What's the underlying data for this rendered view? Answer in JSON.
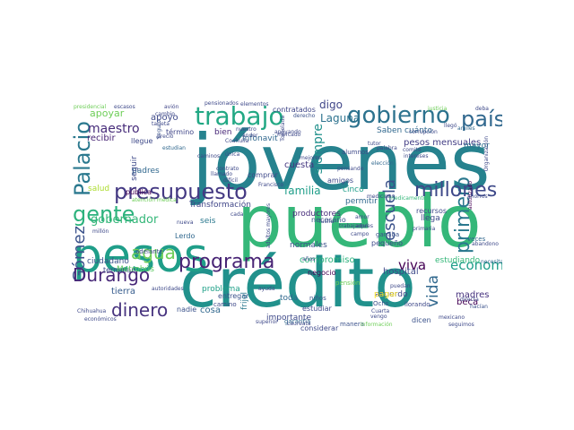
{
  "words": [
    {
      "id": "jovenes",
      "text": "jóvenes",
      "color": "#26828e"
    },
    {
      "id": "pueblo",
      "text": "pueblo",
      "color": "#35b779"
    },
    {
      "id": "credito",
      "text": "crédito",
      "color": "#21918c"
    },
    {
      "id": "pesos",
      "text": "pesos",
      "color": "#1f9e89"
    },
    {
      "id": "presupuesto",
      "text": "presupuesto",
      "color": "#443983"
    },
    {
      "id": "trabajo",
      "text": "trabajo",
      "color": "#22a884"
    },
    {
      "id": "gobierno",
      "text": "gobierno",
      "color": "#2c728e"
    },
    {
      "id": "pais",
      "text": "país",
      "color": "#31688e"
    },
    {
      "id": "palacio",
      "text": "Palacio",
      "color": "#2a788e"
    },
    {
      "id": "gente",
      "text": "gente",
      "color": "#2db27d"
    },
    {
      "id": "agua",
      "text": "agua",
      "color": "#6ece58"
    },
    {
      "id": "gomez",
      "text": "Gómez",
      "color": "#3b528b"
    },
    {
      "id": "durango",
      "text": "Durango",
      "color": "#482878"
    },
    {
      "id": "dinero",
      "text": "dinero",
      "color": "#46327e"
    },
    {
      "id": "programa",
      "text": "programa",
      "color": "#482475"
    },
    {
      "id": "primero",
      "text": "primero",
      "color": "#2a788e"
    },
    {
      "id": "millones",
      "text": "millones",
      "color": "#3e4989"
    },
    {
      "id": "escuela",
      "text": "escuela",
      "color": "#3b528b"
    },
    {
      "id": "vida",
      "text": "vida",
      "color": "#31688e"
    },
    {
      "id": "viva",
      "text": "viva",
      "color": "#440154"
    },
    {
      "id": "economia",
      "text": "economía",
      "color": "#1f9e89"
    },
    {
      "id": "familia",
      "text": "familia",
      "color": "#1f9e89"
    },
    {
      "id": "digo",
      "text": "digo",
      "color": "#404688"
    },
    {
      "id": "laguna",
      "text": "Laguna",
      "color": "#2c728e"
    },
    {
      "id": "siempre",
      "text": "siempre",
      "color": "#21918c"
    },
    {
      "id": "maestro",
      "text": "maestro",
      "color": "#472c7a"
    },
    {
      "id": "gobernador",
      "text": "gobernador",
      "color": "#35b779"
    },
    {
      "id": "apoyar",
      "text": "apoyar",
      "color": "#6ece58"
    },
    {
      "id": "apoyo",
      "text": "apoyo",
      "color": "#3e4989"
    },
    {
      "id": "bien",
      "text": "bien",
      "color": "#482878"
    },
    {
      "id": "contratados",
      "text": "contratados",
      "color": "#404688"
    },
    {
      "id": "saben",
      "text": "Saben cuánto",
      "color": "#31688e"
    },
    {
      "id": "pesos_mensuales",
      "text": "pesos mensuales",
      "color": "#433e85"
    },
    {
      "id": "cuesta",
      "text": "cuesta",
      "color": "#453781"
    },
    {
      "id": "cinco",
      "text": "cinco",
      "color": "#1f9e89"
    },
    {
      "id": "llega",
      "text": "llega",
      "color": "#3e4989"
    },
    {
      "id": "madres",
      "text": "madres",
      "color": "#46327e"
    },
    {
      "id": "estudiando",
      "text": "estudiando",
      "color": "#35b779"
    },
    {
      "id": "hospital",
      "text": "hospital",
      "color": "#3e4989"
    },
    {
      "id": "beca",
      "text": "beca",
      "color": "#440154"
    },
    {
      "id": "compromiso",
      "text": "compromiso",
      "color": "#2db27d"
    },
    {
      "id": "productores",
      "text": "productores",
      "color": "#472d7b"
    },
    {
      "id": "transformacion",
      "text": "Transformación",
      "color": "#404688"
    },
    {
      "id": "infonavit",
      "text": "Infonavit",
      "color": "#31688e"
    },
    {
      "id": "seis",
      "text": "seis",
      "color": "#2a788e"
    },
    {
      "id": "salud",
      "text": "salud",
      "color": "#addc30"
    },
    {
      "id": "ciudadano",
      "text": "ciudadano",
      "color": "#3b528b"
    },
    {
      "id": "terminan",
      "text": "terminan",
      "color": "#3e4989"
    },
    {
      "id": "metrobus",
      "text": "Metrobús",
      "color": "#5ec962"
    },
    {
      "id": "tierra",
      "text": "tierra",
      "color": "#365c8d"
    },
    {
      "id": "problema",
      "text": "problema",
      "color": "#1fa088"
    },
    {
      "id": "cosa",
      "text": "cosa",
      "color": "#31688e"
    },
    {
      "id": "entregar",
      "text": "entregar",
      "color": "#3b528b"
    },
    {
      "id": "toda",
      "text": "toda",
      "color": "#31688e"
    },
    {
      "id": "importante",
      "text": "importante",
      "color": "#3e4989"
    },
    {
      "id": "frijol",
      "text": "frijol",
      "color": "#2a788e"
    },
    {
      "id": "estudiar",
      "text": "estudiar",
      "color": "#3e4989"
    },
    {
      "id": "normales",
      "text": "normales",
      "color": "#3b528b"
    },
    {
      "id": "acuerdo",
      "text": "acuerdo",
      "color": "#404688"
    },
    {
      "id": "mayor",
      "text": "mayor",
      "color": "#2c728e"
    },
    {
      "id": "permitir",
      "text": "permitir",
      "color": "#31688e"
    },
    {
      "id": "amigos",
      "text": "amigos",
      "color": "#3e4989"
    },
    {
      "id": "recibir",
      "text": "recibir",
      "color": "#482475"
    },
    {
      "id": "padres",
      "text": "padres",
      "color": "#31688e"
    },
    {
      "id": "seguir",
      "text": "seguir",
      "color": "#3e4989"
    },
    {
      "id": "publica",
      "text": "pública",
      "color": "#440154"
    },
    {
      "id": "lerdo",
      "text": "Lerdo",
      "color": "#31688e"
    },
    {
      "id": "llegue",
      "text": "llegue",
      "color": "#3e4989"
    },
    {
      "id": "termino",
      "text": "término",
      "color": "#404688"
    },
    {
      "id": "nadie",
      "text": "nadie",
      "color": "#3b528b"
    },
    {
      "id": "necesario",
      "text": "necesario",
      "color": "#3b528b"
    },
    {
      "id": "comprar",
      "text": "comprar",
      "color": "#3e4989"
    },
    {
      "id": "negocio",
      "text": "negocio",
      "color": "#440154"
    },
    {
      "id": "garantia",
      "text": "garantía",
      "color": "#31688e"
    },
    {
      "id": "pequeno",
      "text": "pequeño",
      "color": "#3e4989"
    },
    {
      "id": "pagar",
      "text": "pagar",
      "color": "#fde725"
    },
    {
      "id": "ganaba",
      "text": "ganaba",
      "color": "#3b528b"
    },
    {
      "id": "lucha",
      "text": "lucha",
      "color": "#3e4989"
    },
    {
      "id": "dicen",
      "text": "dicen",
      "color": "#3b528b"
    },
    {
      "id": "manera",
      "text": "manera",
      "color": "#3b528b"
    },
    {
      "id": "recursos",
      "text": "recursos",
      "color": "#3e4989"
    },
    {
      "id": "veces",
      "text": "veces",
      "color": "#31688e"
    },
    {
      "id": "adelante",
      "text": "adelante",
      "color": "#3e4989"
    },
    {
      "id": "pension",
      "text": "pensión",
      "color": "#6ece58"
    },
    {
      "id": "palabra",
      "text": "palabra",
      "color": "#3e4989"
    },
    {
      "id": "estudian",
      "text": "estudian",
      "color": "#31688e"
    },
    {
      "id": "derecho",
      "text": "derecho",
      "color": "#3b528b"
    },
    {
      "id": "elementos",
      "text": "elementos",
      "color": "#3e4989"
    },
    {
      "id": "pensionados",
      "text": "pensionados",
      "color": "#3e4989"
    },
    {
      "id": "avion",
      "text": "avión",
      "color": "#404688"
    },
    {
      "id": "escasos",
      "text": "escasos",
      "color": "#3e4989"
    },
    {
      "id": "presidencial",
      "text": "presidencial",
      "color": "#6ece58"
    },
    {
      "id": "cambio",
      "text": "cambio",
      "color": "#3e4989"
    },
    {
      "id": "seguro",
      "text": "Seguro",
      "color": "#3b528b"
    },
    {
      "id": "tarjeta",
      "text": "tarjeta",
      "color": "#3e4989"
    },
    {
      "id": "justicia",
      "text": "justicia",
      "color": "#6ece58"
    },
    {
      "id": "deba",
      "text": "deba",
      "color": "#3e4989"
    },
    {
      "id": "corrupcion",
      "text": "corrupción",
      "color": "#3e4989"
    },
    {
      "id": "amiles",
      "text": "amiles",
      "color": "#31688e"
    },
    {
      "id": "organizacion",
      "text": "Organización",
      "color": "#3e4989"
    },
    {
      "id": "autorizado",
      "text": "autorizado",
      "color": "#440154"
    },
    {
      "id": "abandono",
      "text": "abandono",
      "color": "#3e4989"
    },
    {
      "id": "necesita",
      "text": "necesita",
      "color": "#31688e"
    },
    {
      "id": "directa",
      "text": "directa",
      "color": "#3e4989"
    },
    {
      "id": "hacian",
      "text": "hacían",
      "color": "#3b528b"
    },
    {
      "id": "mexicano",
      "text": "mexicano",
      "color": "#3e4989"
    },
    {
      "id": "seguimos",
      "text": "seguimos",
      "color": "#3e4989"
    },
    {
      "id": "considerar",
      "text": "considerar",
      "color": "#3e4989"
    },
    {
      "id": "llorando",
      "text": "llorando",
      "color": "#3e4989"
    },
    {
      "id": "ochs",
      "text": "Ochs",
      "color": "#3b528b"
    },
    {
      "id": "camino",
      "text": "camino",
      "color": "#3e4989"
    },
    {
      "id": "chihuahua",
      "text": "Chihuahua",
      "color": "#3e4989"
    },
    {
      "id": "autoridades",
      "text": "autoridades",
      "color": "#3e4989"
    },
    {
      "id": "economicos",
      "text": "económicos",
      "color": "#3e4989"
    },
    {
      "id": "millon",
      "text": "millón",
      "color": "#3e4989"
    },
    {
      "id": "ninos",
      "text": "niños",
      "color": "#3b528b"
    },
    {
      "id": "alumnos",
      "text": "alumnos",
      "color": "#3e4989"
    },
    {
      "id": "pensando",
      "text": "pensando",
      "color": "#3e4989"
    },
    {
      "id": "eleccion",
      "text": "elección",
      "color": "#31688e"
    },
    {
      "id": "medicinas",
      "text": "medicinas",
      "color": "#3e4989"
    },
    {
      "id": "medicamentos",
      "text": "medicamentos",
      "color": "#35b779"
    },
    {
      "id": "trabajadores",
      "text": "trabajadores",
      "color": "#3e4989"
    },
    {
      "id": "campo",
      "text": "campo",
      "color": "#3e4989"
    },
    {
      "id": "tutor",
      "text": "tutor",
      "color": "#3e4989"
    },
    {
      "id": "comite",
      "text": "comité",
      "color": "#3e4989"
    },
    {
      "id": "intereses",
      "text": "intereses",
      "color": "#3e4989"
    },
    {
      "id": "atencion",
      "text": "atención médica",
      "color": "#6ece58"
    },
    {
      "id": "unica",
      "text": "única",
      "color": "#3e4989"
    },
    {
      "id": "mercado",
      "text": "mercado",
      "color": "#3e4989"
    },
    {
      "id": "tomelada",
      "text": "Tomelada",
      "color": "#3e4989"
    },
    {
      "id": "laureata",
      "text": "Laureata",
      "color": "#3e4989"
    },
    {
      "id": "ahorros",
      "text": "ahorros",
      "color": "#3e4989"
    },
    {
      "id": "llamado",
      "text": "llamado",
      "color": "#3e4989"
    },
    {
      "id": "contrato",
      "text": "contrato",
      "color": "#3e4989"
    },
    {
      "id": "coahuila",
      "text": "Coahuila",
      "color": "#3e4989"
    },
    {
      "id": "informacion",
      "text": "información",
      "color": "#6ece58"
    },
    {
      "id": "cuarta",
      "text": "Cuarta",
      "color": "#3e4989"
    },
    {
      "id": "vengo",
      "text": "vengo",
      "color": "#3e4989"
    },
    {
      "id": "primaria",
      "text": "primaria",
      "color": "#3e4989"
    },
    {
      "id": "superior",
      "text": "superior",
      "color": "#3e4989"
    },
    {
      "id": "caminos",
      "text": "caminos",
      "color": "#3e4989"
    },
    {
      "id": "francisco",
      "text": "Francisco",
      "color": "#3e4989"
    },
    {
      "id": "mejores",
      "text": "mejores",
      "color": "#3e4989"
    },
    {
      "id": "apoyando",
      "text": "apoyando",
      "color": "#3e4989"
    },
    {
      "id": "nuestro",
      "text": "nuestro",
      "color": "#3e4989"
    },
    {
      "id": "adultos",
      "text": "adultos mayores",
      "color": "#3e4989"
    },
    {
      "id": "puedan",
      "text": "puedan",
      "color": "#3e4989"
    },
    {
      "id": "precio",
      "text": "precio",
      "color": "#3e4989"
    },
    {
      "id": "dificil",
      "text": "difícil",
      "color": "#3e4989"
    },
    {
      "id": "llega_small",
      "text": "llegó",
      "color": "#3e4989"
    },
    {
      "id": "ander",
      "text": "ánder",
      "color": "#3e4989"
    },
    {
      "id": "nueva",
      "text": "nueva",
      "color": "#3e4989"
    },
    {
      "id": "cada",
      "text": "cada",
      "color": "#3e4989"
    },
    {
      "id": "amor",
      "text": "amor",
      "color": "#3e4989"
    },
    {
      "id": "aqui",
      "text": "aquí",
      "color": "#3e4989"
    },
    {
      "id": "anos",
      "text": "años",
      "color": "#3e4989"
    },
    {
      "id": "ayuda",
      "text": "ayuda",
      "color": "#3e4989"
    }
  ]
}
